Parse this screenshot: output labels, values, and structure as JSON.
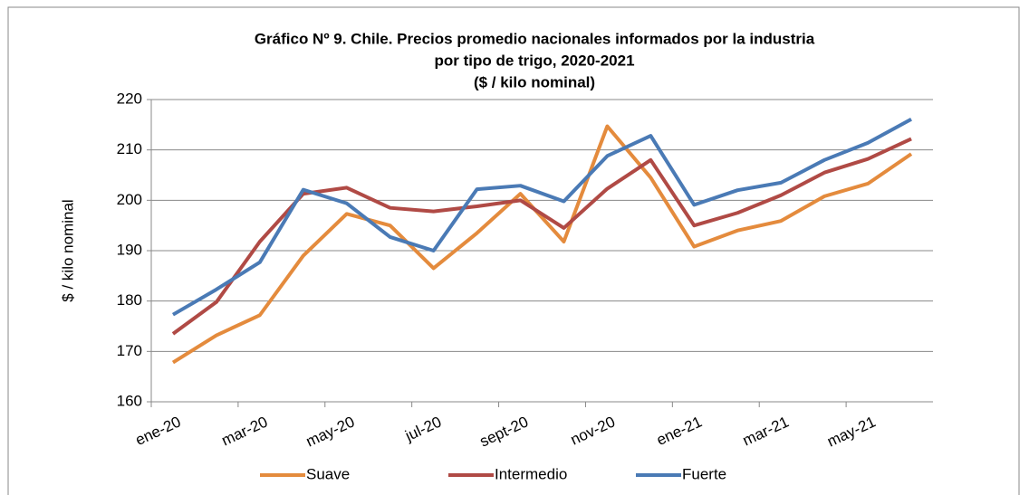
{
  "chart_data": {
    "type": "line",
    "title": [
      "Gráfico Nº 9. Chile. Precios promedio nacionales informados por la industria",
      "por tipo de trigo, 2020-2021",
      "($ / kilo nominal)"
    ],
    "y_label": "$ / kilo nominal",
    "categories": [
      "ene-20",
      null,
      "mar-20",
      null,
      "may-20",
      null,
      "jul-20",
      null,
      "sept-20",
      null,
      "nov-20",
      null,
      "ene-21",
      null,
      "mar-21",
      null,
      "may-21",
      null
    ],
    "series": [
      {
        "name": "Suave",
        "color": "#e48b3d",
        "values": [
          167.8,
          173.2,
          177.2,
          189,
          197.3,
          195,
          186.5,
          193.5,
          201.3,
          191.8,
          214.7,
          204.5,
          190.8,
          194,
          195.9,
          200.8,
          203.3,
          209.2
        ]
      },
      {
        "name": "Intermedio",
        "color": "#b04a45",
        "values": [
          173.5,
          179.8,
          191.8,
          201.3,
          202.5,
          198.5,
          197.8,
          198.8,
          200,
          194.5,
          202.3,
          208,
          195,
          197.5,
          201,
          205.5,
          208.2,
          212.2
        ]
      },
      {
        "name": "Fuerte",
        "color": "#4a7ab5",
        "values": [
          177.3,
          182.3,
          187.7,
          202.1,
          199.4,
          192.7,
          190,
          202.2,
          202.9,
          199.8,
          208.8,
          212.8,
          199.1,
          202,
          203.5,
          208,
          211.4,
          216.1
        ]
      }
    ],
    "ylim": [
      160,
      220
    ],
    "yticks": [
      160,
      170,
      180,
      190,
      200,
      210,
      220
    ],
    "grid": true,
    "legend": "bottom"
  }
}
